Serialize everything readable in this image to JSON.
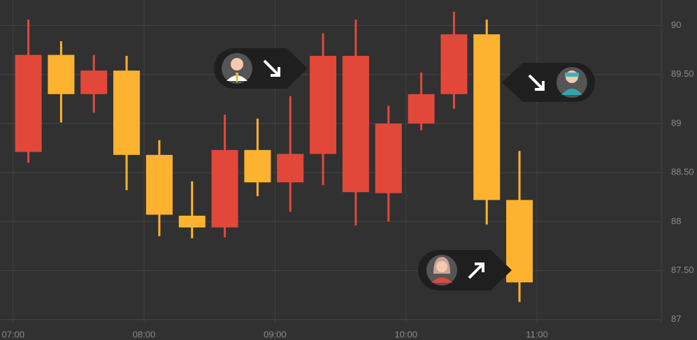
{
  "chart_data": {
    "type": "candlestick",
    "x": [
      427,
      442,
      457,
      472,
      487,
      502,
      517,
      532,
      547,
      562,
      577,
      592,
      607,
      622,
      637,
      652
    ],
    "open": [
      88.71,
      89.7,
      89.3,
      89.54,
      88.68,
      88.06,
      87.94,
      88.73,
      88.4,
      88.69,
      88.3,
      88.29,
      89.0,
      89.3,
      89.91,
      88.22
    ],
    "high": [
      90.06,
      89.84,
      89.7,
      89.69,
      88.83,
      88.41,
      89.09,
      89.05,
      89.28,
      89.92,
      90.06,
      89.18,
      89.52,
      90.14,
      90.06,
      88.72
    ],
    "low": [
      88.6,
      89.01,
      89.11,
      88.32,
      87.85,
      87.83,
      87.84,
      88.26,
      88.1,
      88.37,
      87.96,
      88.0,
      88.93,
      89.15,
      87.97,
      87.18
    ],
    "close": [
      89.7,
      89.3,
      89.54,
      88.68,
      88.07,
      87.94,
      88.73,
      88.4,
      88.69,
      89.69,
      89.69,
      89.0,
      89.3,
      89.91,
      88.22,
      87.38
    ],
    "up_color": "#e2483a",
    "down_color": "#fdb32f",
    "xlim": [
      414,
      717
    ],
    "xticks": [
      {
        "value": 420,
        "label": "07:00"
      },
      {
        "value": 480,
        "label": "08:00"
      },
      {
        "value": 540,
        "label": "09:00"
      },
      {
        "value": 600,
        "label": "10:00"
      },
      {
        "value": 660,
        "label": "11:00"
      }
    ],
    "ylim": [
      86.97,
      90.26
    ],
    "yticks": [
      90,
      {
        "value": 89.5,
        "label": "89.50"
      },
      89,
      {
        "value": 88.5,
        "label": "88.50"
      },
      88,
      {
        "value": 87.5,
        "label": "87.50"
      },
      87
    ],
    "grid": true
  }
}
